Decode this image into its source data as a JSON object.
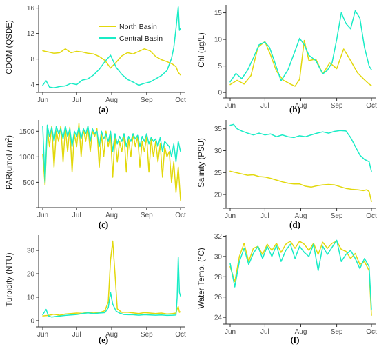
{
  "colors": {
    "north": "#e2d80c",
    "central": "#19ecc6",
    "axis": "#333333",
    "tick_text": "#4d4d4d"
  },
  "legend": {
    "north_label": "North Basin",
    "central_label": "Central Basin"
  },
  "x_axis": {
    "tick_labels": [
      "Jun",
      "Jul",
      "Aug",
      "Sep",
      "Oct"
    ],
    "tick_values": [
      0,
      30,
      61,
      92,
      122
    ]
  },
  "chart_data": [
    {
      "type": "line",
      "panel_label": "(a)",
      "ylabel": "CDOM (QSDE)",
      "ylim": [
        3.2,
        16.5
      ],
      "yticks": [
        4,
        8,
        12,
        16
      ],
      "ytick_labels": [
        "4",
        "8",
        "12",
        "16"
      ],
      "show_legend": true,
      "legend_placement": "top-center",
      "series": [
        {
          "name": "North Basin",
          "color": "#e2d80c",
          "x": [
            0,
            5,
            10,
            15,
            20,
            25,
            30,
            35,
            40,
            45,
            50,
            55,
            60,
            65,
            70,
            75,
            80,
            85,
            90,
            95,
            100,
            105,
            110,
            115,
            118,
            120,
            122
          ],
          "y": [
            9.3,
            9.1,
            8.9,
            9.0,
            9.6,
            9.0,
            9.2,
            9.1,
            8.9,
            8.8,
            8.4,
            7.8,
            6.6,
            7.5,
            8.5,
            9.0,
            8.8,
            9.2,
            9.6,
            9.3,
            8.4,
            7.9,
            7.6,
            7.2,
            6.8,
            5.9,
            5.5
          ]
        },
        {
          "name": "Central Basin",
          "color": "#19ecc6",
          "x": [
            0,
            3,
            6,
            10,
            15,
            20,
            25,
            30,
            35,
            40,
            45,
            50,
            55,
            60,
            65,
            70,
            75,
            80,
            85,
            90,
            95,
            100,
            105,
            110,
            114,
            116,
            118,
            120,
            121,
            122
          ],
          "y": [
            3.9,
            4.6,
            3.6,
            3.5,
            3.7,
            3.8,
            4.2,
            4.0,
            4.7,
            4.9,
            5.5,
            6.4,
            7.6,
            8.6,
            6.7,
            5.6,
            4.8,
            4.4,
            3.9,
            4.2,
            4.4,
            4.9,
            5.4,
            6.2,
            8.1,
            9.8,
            12.8,
            16.2,
            12.5,
            12.8
          ]
        }
      ]
    },
    {
      "type": "line",
      "panel_label": "(b)",
      "ylabel": "Chl (ug/L)",
      "ylim": [
        -0.5,
        16.5
      ],
      "yticks": [
        0,
        5,
        10,
        15
      ],
      "ytick_labels": [
        "0",
        "5",
        "10",
        "15"
      ],
      "show_legend": false,
      "series": [
        {
          "name": "North Basin",
          "color": "#e2d80c",
          "x": [
            0,
            6,
            12,
            18,
            24,
            30,
            35,
            40,
            46,
            52,
            56,
            60,
            64,
            68,
            74,
            80,
            86,
            92,
            98,
            104,
            110,
            116,
            120,
            122
          ],
          "y": [
            1.5,
            2.3,
            1.6,
            3.2,
            8.5,
            9.6,
            7.0,
            4.0,
            2.3,
            1.6,
            1.2,
            2.5,
            9.8,
            6.0,
            6.3,
            3.5,
            5.6,
            4.5,
            8.2,
            6.0,
            3.7,
            2.4,
            1.6,
            1.3
          ]
        },
        {
          "name": "Central Basin",
          "color": "#19ecc6",
          "x": [
            0,
            5,
            10,
            15,
            20,
            25,
            30,
            34,
            38,
            44,
            50,
            56,
            60,
            64,
            68,
            74,
            80,
            84,
            88,
            92,
            96,
            100,
            104,
            108,
            112,
            116,
            120,
            122
          ],
          "y": [
            2.0,
            3.6,
            2.6,
            4.2,
            6.5,
            9.0,
            9.5,
            8.5,
            6.0,
            2.2,
            4.3,
            7.8,
            10.2,
            9.0,
            7.0,
            6.0,
            3.5,
            4.2,
            5.6,
            10.0,
            15.0,
            13.0,
            12.0,
            15.4,
            14.0,
            8.5,
            5.0,
            4.3
          ]
        }
      ]
    },
    {
      "type": "line",
      "panel_label": "(c)",
      "ylabel": "PAR(umol / m²)",
      "ylim": [
        60,
        1720
      ],
      "yticks": [
        500,
        1000,
        1500
      ],
      "ytick_labels": [
        "500",
        "1000",
        "1500"
      ],
      "show_legend": false,
      "series": [
        {
          "name": "North Basin",
          "color": "#e2d80c",
          "x": [
            0,
            2,
            4,
            6,
            8,
            10,
            12,
            14,
            16,
            18,
            20,
            22,
            24,
            26,
            28,
            30,
            32,
            34,
            36,
            38,
            40,
            42,
            44,
            46,
            48,
            50,
            52,
            54,
            56,
            58,
            60,
            62,
            64,
            66,
            68,
            70,
            72,
            74,
            76,
            78,
            80,
            82,
            84,
            86,
            88,
            90,
            92,
            94,
            96,
            98,
            100,
            102,
            104,
            106,
            108,
            110,
            112,
            114,
            116,
            118,
            120,
            122
          ],
          "y": [
            1050,
            450,
            1550,
            1200,
            1600,
            800,
            1500,
            1300,
            1600,
            900,
            1550,
            1100,
            1580,
            700,
            1450,
            1200,
            1650,
            1000,
            1550,
            1300,
            1600,
            1100,
            1500,
            1400,
            1550,
            800,
            1450,
            1000,
            1500,
            1200,
            1450,
            600,
            1400,
            900,
            1300,
            1100,
            1450,
            700,
            1350,
            1000,
            1450,
            1200,
            1400,
            800,
            1300,
            1100,
            1400,
            700,
            1350,
            1000,
            1300,
            900,
            1250,
            600,
            1200,
            1000,
            1100,
            500,
            900,
            300,
            800,
            150
          ]
        },
        {
          "name": "Central Basin",
          "color": "#19ecc6",
          "x": [
            0,
            2,
            4,
            6,
            8,
            10,
            12,
            14,
            16,
            18,
            20,
            22,
            24,
            26,
            28,
            30,
            32,
            34,
            36,
            38,
            40,
            42,
            44,
            46,
            48,
            50,
            52,
            54,
            56,
            58,
            60,
            62,
            64,
            66,
            68,
            70,
            72,
            74,
            76,
            78,
            80,
            82,
            84,
            86,
            88,
            90,
            92,
            94,
            96,
            98,
            100,
            102,
            104,
            106,
            108,
            110,
            112,
            114,
            116,
            118,
            120,
            122
          ],
          "y": [
            1600,
            500,
            1620,
            1400,
            1580,
            1300,
            1600,
            1450,
            1550,
            1350,
            1600,
            1400,
            1550,
            1200,
            1500,
            1400,
            1580,
            1350,
            1550,
            1450,
            1600,
            1300,
            1550,
            1450,
            1500,
            1200,
            1500,
            1350,
            1450,
            1300,
            1500,
            1100,
            1450,
            1250,
            1400,
            1300,
            1450,
            1200,
            1400,
            1300,
            1450,
            1350,
            1420,
            1200,
            1400,
            1300,
            1450,
            1250,
            1380,
            1300,
            1350,
            1200,
            1380,
            1100,
            1300,
            1250,
            1200,
            1000,
            1250,
            900,
            1300,
            1100
          ]
        }
      ]
    },
    {
      "type": "line",
      "panel_label": "(d)",
      "ylabel": "Salinity (PSU)",
      "ylim": [
        17.5,
        37.0
      ],
      "yticks": [
        20,
        25,
        30,
        35
      ],
      "ytick_labels": [
        "20",
        "25",
        "30",
        "35"
      ],
      "show_legend": false,
      "series": [
        {
          "name": "North Basin",
          "color": "#e2d80c",
          "x": [
            0,
            5,
            10,
            15,
            20,
            25,
            30,
            35,
            40,
            45,
            50,
            55,
            60,
            65,
            70,
            75,
            80,
            85,
            90,
            95,
            100,
            105,
            110,
            115,
            118,
            120,
            122
          ],
          "y": [
            25.3,
            25.0,
            24.7,
            24.4,
            24.5,
            24.1,
            24.0,
            23.7,
            23.3,
            22.9,
            22.6,
            22.4,
            22.4,
            21.9,
            21.7,
            22.0,
            22.2,
            22.3,
            22.2,
            21.8,
            21.4,
            21.2,
            21.1,
            20.9,
            21.1,
            20.7,
            18.4
          ]
        },
        {
          "name": "Central Basin",
          "color": "#19ecc6",
          "x": [
            0,
            3,
            6,
            10,
            15,
            20,
            25,
            30,
            35,
            40,
            45,
            50,
            55,
            60,
            65,
            70,
            75,
            80,
            85,
            90,
            95,
            100,
            104,
            108,
            112,
            116,
            120,
            122
          ],
          "y": [
            35.8,
            36.0,
            35.0,
            34.5,
            34.0,
            33.6,
            34.0,
            33.6,
            33.8,
            33.2,
            33.6,
            33.2,
            33.0,
            33.4,
            33.2,
            33.6,
            34.0,
            34.3,
            34.0,
            34.4,
            34.6,
            34.5,
            33.0,
            31.0,
            29.0,
            28.0,
            27.5,
            25.3
          ]
        }
      ]
    },
    {
      "type": "line",
      "panel_label": "(e)",
      "ylabel": "Turbidity (NTU)",
      "ylim": [
        -1.5,
        36.5
      ],
      "yticks": [
        0,
        10,
        20,
        30
      ],
      "ytick_labels": [
        "0",
        "10",
        "20",
        "30"
      ],
      "show_legend": false,
      "series": [
        {
          "name": "North Basin",
          "color": "#e2d80c",
          "x": [
            0,
            5,
            10,
            15,
            20,
            25,
            30,
            35,
            40,
            45,
            50,
            55,
            58,
            60,
            62,
            64,
            66,
            70,
            75,
            80,
            85,
            90,
            95,
            100,
            105,
            110,
            115,
            118,
            119,
            120,
            121,
            122
          ],
          "y": [
            2.0,
            2.2,
            2.7,
            2.3,
            2.8,
            3.0,
            3.2,
            3.1,
            3.5,
            3.2,
            3.4,
            4.2,
            8.0,
            26.0,
            34.0,
            20.0,
            5.0,
            3.5,
            3.6,
            3.3,
            3.0,
            3.4,
            3.2,
            3.0,
            3.2,
            2.8,
            3.0,
            3.2,
            5.0,
            6.0,
            3.5,
            3.8
          ]
        },
        {
          "name": "Central Basin",
          "color": "#19ecc6",
          "x": [
            0,
            3,
            5,
            8,
            12,
            16,
            20,
            25,
            30,
            35,
            40,
            45,
            50,
            55,
            58,
            60,
            62,
            65,
            68,
            72,
            76,
            80,
            85,
            90,
            95,
            100,
            105,
            110,
            115,
            118,
            119,
            120,
            121,
            122
          ],
          "y": [
            2.5,
            4.8,
            2.0,
            1.5,
            1.8,
            2.0,
            2.2,
            2.4,
            2.6,
            3.0,
            3.3,
            3.0,
            3.2,
            3.4,
            5.5,
            12.0,
            7.0,
            4.0,
            3.2,
            2.6,
            2.5,
            2.5,
            2.3,
            2.5,
            2.4,
            2.3,
            2.4,
            2.2,
            2.3,
            2.4,
            10.0,
            27.0,
            12.0,
            10.5
          ]
        }
      ]
    },
    {
      "type": "line",
      "panel_label": "(f)",
      "ylabel": "Water Temp. (°C)",
      "ylim": [
        23.6,
        32.1
      ],
      "yticks": [
        24,
        26,
        28,
        30,
        32
      ],
      "ytick_labels": [
        "24",
        "26",
        "28",
        "30",
        "32"
      ],
      "show_legend": false,
      "series": [
        {
          "name": "North Basin",
          "color": "#e2d80c",
          "x": [
            0,
            4,
            8,
            12,
            16,
            20,
            24,
            28,
            32,
            36,
            40,
            44,
            48,
            52,
            56,
            60,
            64,
            68,
            72,
            76,
            80,
            84,
            88,
            92,
            96,
            100,
            104,
            108,
            112,
            116,
            120,
            122
          ],
          "y": [
            29.0,
            27.5,
            30.0,
            31.3,
            29.5,
            30.8,
            31.0,
            30.2,
            31.2,
            30.6,
            31.3,
            30.4,
            31.2,
            31.5,
            30.8,
            31.5,
            31.2,
            30.6,
            31.3,
            30.2,
            31.4,
            30.8,
            31.3,
            31.5,
            30.7,
            30.5,
            29.8,
            30.3,
            29.2,
            29.5,
            28.6,
            24.2
          ]
        },
        {
          "name": "Central Basin",
          "color": "#19ecc6",
          "x": [
            0,
            4,
            8,
            12,
            16,
            20,
            24,
            28,
            32,
            36,
            40,
            44,
            48,
            52,
            56,
            60,
            64,
            68,
            72,
            76,
            80,
            84,
            88,
            92,
            96,
            100,
            104,
            108,
            112,
            116,
            120,
            122
          ],
          "y": [
            29.3,
            27.0,
            29.5,
            30.8,
            29.2,
            30.3,
            31.0,
            29.8,
            31.0,
            30.0,
            31.1,
            29.5,
            30.6,
            31.2,
            29.8,
            31.0,
            30.4,
            30.0,
            31.2,
            28.6,
            31.0,
            30.2,
            30.9,
            31.6,
            29.5,
            30.2,
            30.6,
            29.8,
            28.8,
            29.8,
            29.0,
            24.8
          ]
        }
      ]
    }
  ]
}
